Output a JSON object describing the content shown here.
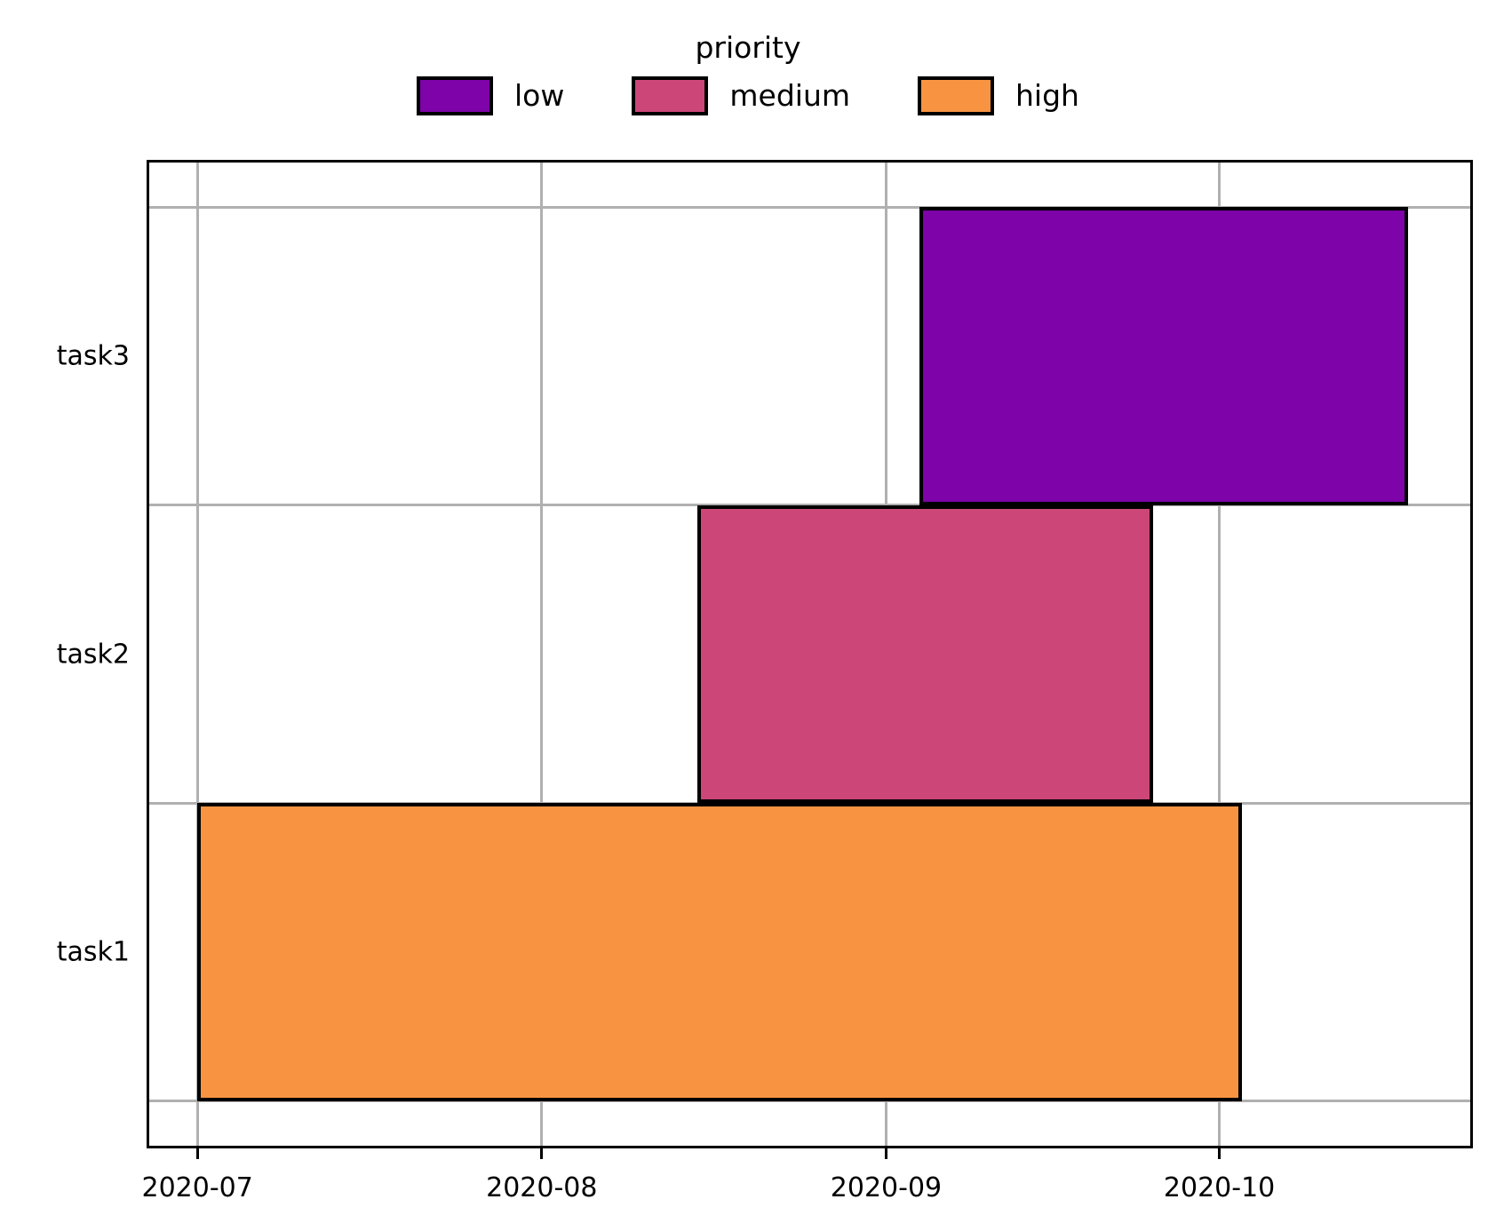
{
  "figure": {
    "legend": {
      "title": "priority",
      "entries": [
        {
          "label": "low",
          "color": "#7e03a8"
        },
        {
          "label": "medium",
          "color": "#cc4778"
        },
        {
          "label": "high",
          "color": "#f89441"
        }
      ]
    }
  },
  "chart_data": {
    "type": "bar",
    "subtype": "gantt-timeline",
    "orientation": "horizontal",
    "title": "",
    "legend_title": "priority",
    "legend_position": "top-center",
    "grid": true,
    "grid_color": "#b0b0b0",
    "bar_edge_color": "#000000",
    "background_color": "#ffffff",
    "tasks": [
      {
        "name": "task3",
        "priority": "low",
        "start": "2020-09-04",
        "end": "2020-10-18",
        "color": "#7e03a8"
      },
      {
        "name": "task2",
        "priority": "medium",
        "start": "2020-08-15",
        "end": "2020-09-25",
        "color": "#cc4778"
      },
      {
        "name": "task1",
        "priority": "high",
        "start": "2020-07-01",
        "end": "2020-10-03",
        "color": "#f89441"
      }
    ],
    "x_ticks": [
      {
        "label": "2020-07",
        "date": "2020-07-01"
      },
      {
        "label": "2020-08",
        "date": "2020-08-01"
      },
      {
        "label": "2020-09",
        "date": "2020-09-01"
      },
      {
        "label": "2020-10",
        "date": "2020-10-01"
      }
    ],
    "y_tick_labels": [
      "task3",
      "task2",
      "task1"
    ],
    "xlim": [
      "2020-06-26T16:00:00",
      "2020-10-23T14:00:00"
    ],
    "ylim": [
      -0.65,
      2.65
    ]
  }
}
